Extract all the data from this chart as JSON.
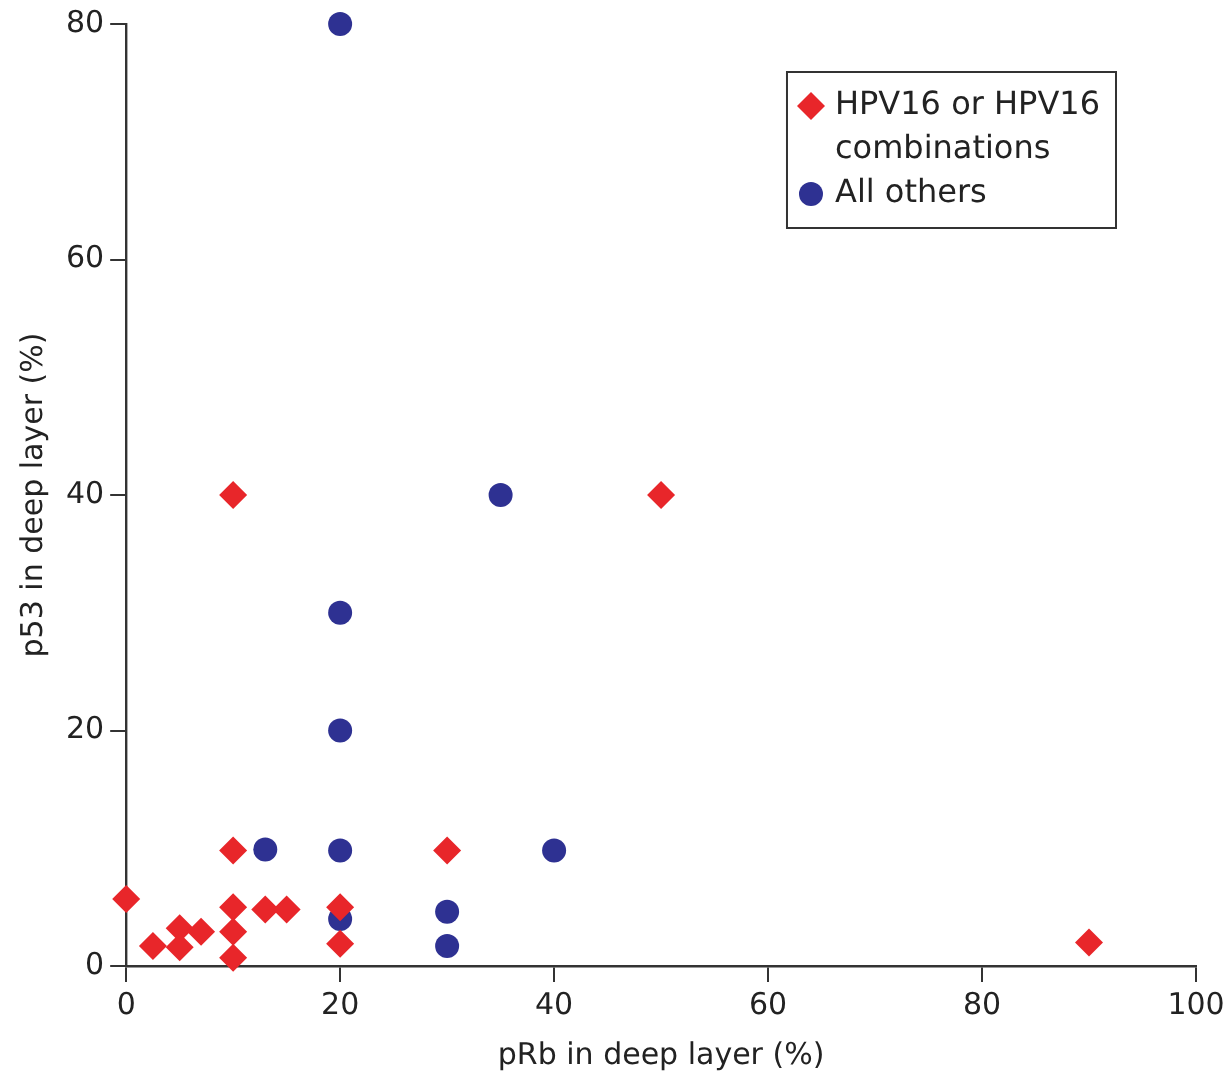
{
  "chart_data": {
    "type": "scatter",
    "xlabel": "pRb in deep layer (%)",
    "ylabel": "p53 in deep layer (%)",
    "xlim": [
      0,
      100
    ],
    "xticks": [
      0,
      20,
      40,
      60,
      80,
      100
    ],
    "ylim": [
      0,
      80
    ],
    "yticks": [
      0,
      20,
      40,
      60,
      80
    ],
    "grid": false,
    "legend": "top right",
    "series": [
      {
        "name": "HPV16 or HPV16 combinations",
        "color": "#e8262a",
        "marker": "diamond",
        "x": [
          0,
          2.5,
          5,
          5,
          7,
          10,
          10,
          10,
          10,
          10,
          13,
          15,
          20,
          20,
          30,
          50,
          90
        ],
        "values": [
          5.7,
          1.7,
          3.2,
          1.6,
          2.9,
          9.8,
          5,
          2.9,
          0.7,
          40,
          4.8,
          4.8,
          5,
          1.9,
          9.8,
          40,
          2
        ]
      },
      {
        "name": "All others",
        "color": "#2e3192",
        "marker": "circle",
        "x": [
          13,
          20,
          20,
          20,
          20,
          20,
          30,
          30,
          35,
          40
        ],
        "values": [
          9.9,
          9.8,
          4,
          20,
          30,
          80,
          4.6,
          1.7,
          40,
          9.8
        ]
      }
    ]
  }
}
